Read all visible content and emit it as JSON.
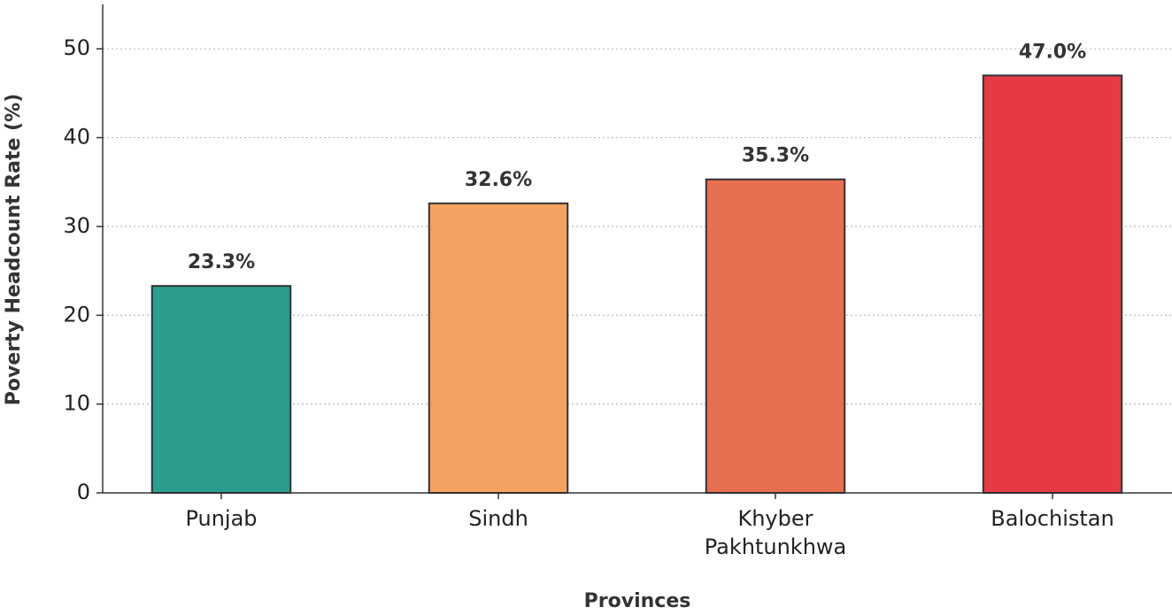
{
  "chart_data": {
    "type": "bar",
    "categories": [
      "Punjab",
      "Sindh",
      "Khyber\nPakhtunkhwa",
      "Balochistan"
    ],
    "values": [
      23.3,
      32.6,
      35.3,
      47.0
    ],
    "value_labels": [
      "23.3%",
      "32.6%",
      "35.3%",
      "47.0%"
    ],
    "colors": [
      "#2a9d8f",
      "#f4a261",
      "#e76f51",
      "#e63946"
    ],
    "xlabel": "Provinces",
    "ylabel": "Poverty Headcount Rate (%)",
    "ylim": [
      0,
      55
    ],
    "yticks": [
      0,
      10,
      20,
      30,
      40,
      50
    ],
    "grid": true
  }
}
